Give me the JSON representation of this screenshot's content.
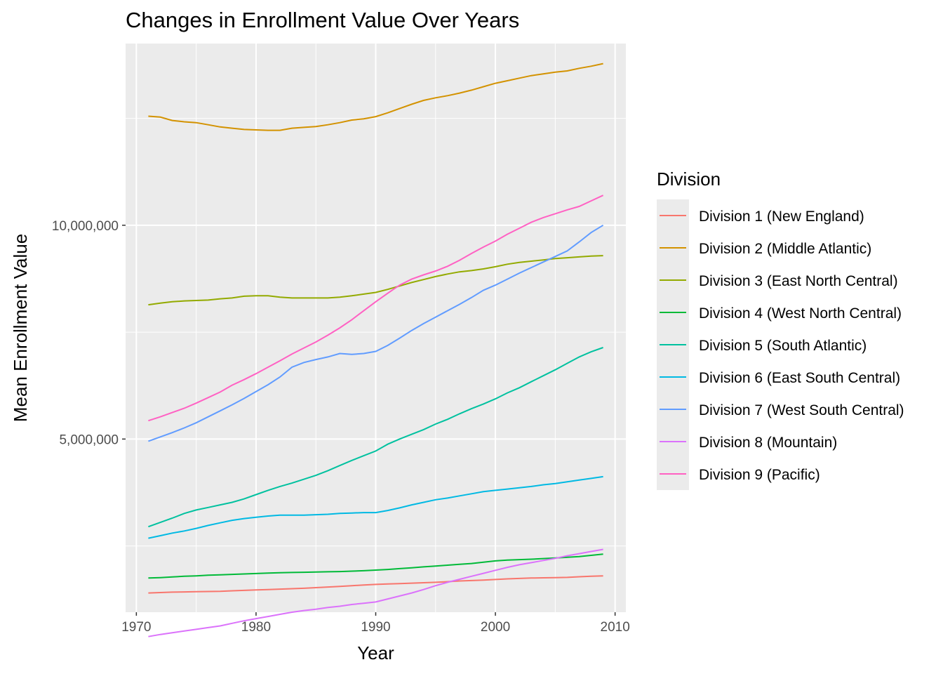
{
  "chart_data": {
    "type": "line",
    "title": "Changes in Enrollment Value Over Years",
    "xlabel": "Year",
    "ylabel": "Mean Enrollment Value",
    "xlim": [
      1969.1,
      2010.9
    ],
    "ylim": [
      950000,
      14250000
    ],
    "x_ticks": [
      1970,
      1980,
      1990,
      2000,
      2010
    ],
    "x_tick_labels": [
      "1970",
      "1980",
      "1990",
      "2000",
      "2010"
    ],
    "y_ticks": [
      5000000,
      10000000
    ],
    "y_tick_labels": [
      "5,000,000",
      "10,000,000"
    ],
    "legend": {
      "title": "Division",
      "position": "right"
    },
    "grid": true,
    "background": "#ebebeb",
    "x": [
      1971,
      1972,
      1973,
      1974,
      1975,
      1976,
      1977,
      1978,
      1979,
      1980,
      1981,
      1982,
      1983,
      1984,
      1985,
      1986,
      1987,
      1988,
      1989,
      1990,
      1991,
      1992,
      1993,
      1994,
      1995,
      1996,
      1997,
      1998,
      1999,
      2000,
      2001,
      2002,
      2003,
      2004,
      2005,
      2006,
      2007,
      2008,
      2009
    ],
    "series": [
      {
        "name": "Division 1 (New England)",
        "color": "#F8766D",
        "values": [
          1400000,
          1410000,
          1420000,
          1425000,
          1430000,
          1435000,
          1440000,
          1450000,
          1460000,
          1470000,
          1480000,
          1490000,
          1500000,
          1510000,
          1525000,
          1540000,
          1555000,
          1570000,
          1585000,
          1600000,
          1610000,
          1620000,
          1630000,
          1640000,
          1650000,
          1665000,
          1680000,
          1690000,
          1700000,
          1715000,
          1730000,
          1740000,
          1750000,
          1755000,
          1760000,
          1765000,
          1780000,
          1790000,
          1800000
        ]
      },
      {
        "name": "Division 2 (Middle Atlantic)",
        "color": "#D39200",
        "values": [
          12550000,
          12530000,
          12450000,
          12420000,
          12400000,
          12350000,
          12300000,
          12270000,
          12240000,
          12230000,
          12220000,
          12220000,
          12270000,
          12290000,
          12310000,
          12350000,
          12400000,
          12460000,
          12490000,
          12540000,
          12630000,
          12730000,
          12830000,
          12920000,
          12980000,
          13030000,
          13090000,
          13160000,
          13240000,
          13320000,
          13380000,
          13440000,
          13500000,
          13540000,
          13580000,
          13610000,
          13670000,
          13720000,
          13780000
        ]
      },
      {
        "name": "Division 3 (East North Central)",
        "color": "#93AA00",
        "values": [
          8140000,
          8180000,
          8210000,
          8230000,
          8240000,
          8250000,
          8280000,
          8300000,
          8340000,
          8350000,
          8350000,
          8320000,
          8300000,
          8300000,
          8300000,
          8300000,
          8320000,
          8350000,
          8390000,
          8430000,
          8500000,
          8580000,
          8660000,
          8730000,
          8800000,
          8860000,
          8910000,
          8940000,
          8980000,
          9030000,
          9090000,
          9130000,
          9160000,
          9190000,
          9220000,
          9240000,
          9260000,
          9280000,
          9290000
        ]
      },
      {
        "name": "Division 4 (West North Central)",
        "color": "#00BA38",
        "values": [
          1750000,
          1760000,
          1775000,
          1790000,
          1800000,
          1815000,
          1825000,
          1835000,
          1845000,
          1855000,
          1865000,
          1875000,
          1880000,
          1885000,
          1890000,
          1895000,
          1900000,
          1910000,
          1920000,
          1935000,
          1950000,
          1970000,
          1990000,
          2010000,
          2030000,
          2050000,
          2070000,
          2090000,
          2120000,
          2150000,
          2170000,
          2180000,
          2190000,
          2205000,
          2220000,
          2235000,
          2250000,
          2280000,
          2310000
        ]
      },
      {
        "name": "Division 5 (South Atlantic)",
        "color": "#00C19F",
        "values": [
          2950000,
          3050000,
          3150000,
          3260000,
          3340000,
          3400000,
          3460000,
          3520000,
          3600000,
          3700000,
          3800000,
          3890000,
          3970000,
          4060000,
          4150000,
          4260000,
          4380000,
          4500000,
          4610000,
          4720000,
          4880000,
          5000000,
          5110000,
          5220000,
          5350000,
          5460000,
          5590000,
          5710000,
          5820000,
          5940000,
          6080000,
          6200000,
          6340000,
          6480000,
          6620000,
          6770000,
          6920000,
          7040000,
          7140000
        ]
      },
      {
        "name": "Division 6 (East South Central)",
        "color": "#00B9E3",
        "values": [
          2680000,
          2740000,
          2800000,
          2850000,
          2910000,
          2980000,
          3040000,
          3100000,
          3140000,
          3170000,
          3200000,
          3220000,
          3220000,
          3220000,
          3230000,
          3240000,
          3260000,
          3270000,
          3280000,
          3280000,
          3330000,
          3390000,
          3460000,
          3520000,
          3580000,
          3620000,
          3670000,
          3720000,
          3770000,
          3800000,
          3830000,
          3860000,
          3890000,
          3930000,
          3960000,
          4000000,
          4040000,
          4080000,
          4120000
        ]
      },
      {
        "name": "Division 7 (West South Central)",
        "color": "#619CFF",
        "values": [
          4950000,
          5050000,
          5150000,
          5260000,
          5380000,
          5520000,
          5660000,
          5800000,
          5950000,
          6110000,
          6270000,
          6450000,
          6680000,
          6790000,
          6860000,
          6920000,
          7000000,
          6980000,
          7000000,
          7050000,
          7190000,
          7360000,
          7540000,
          7700000,
          7850000,
          8000000,
          8150000,
          8310000,
          8480000,
          8600000,
          8740000,
          8880000,
          9010000,
          9140000,
          9270000,
          9400000,
          9610000,
          9830000,
          10000000
        ]
      },
      {
        "name": "Division 8 (Mountain)",
        "color": "#DB72FB",
        "values": [
          380000,
          430000,
          470000,
          510000,
          550000,
          590000,
          630000,
          690000,
          750000,
          800000,
          850000,
          900000,
          950000,
          990000,
          1020000,
          1060000,
          1090000,
          1130000,
          1160000,
          1190000,
          1260000,
          1330000,
          1400000,
          1480000,
          1570000,
          1650000,
          1720000,
          1790000,
          1860000,
          1930000,
          2000000,
          2060000,
          2110000,
          2160000,
          2210000,
          2270000,
          2320000,
          2370000,
          2420000
        ]
      },
      {
        "name": "Division 9 (Pacific)",
        "color": "#FF61C3",
        "values": [
          5430000,
          5520000,
          5620000,
          5720000,
          5840000,
          5970000,
          6100000,
          6260000,
          6390000,
          6530000,
          6680000,
          6830000,
          6990000,
          7130000,
          7270000,
          7430000,
          7600000,
          7790000,
          8000000,
          8210000,
          8410000,
          8600000,
          8740000,
          8840000,
          8930000,
          9040000,
          9180000,
          9340000,
          9490000,
          9630000,
          9790000,
          9930000,
          10070000,
          10180000,
          10270000,
          10360000,
          10440000,
          10570000,
          10700000
        ]
      }
    ]
  }
}
